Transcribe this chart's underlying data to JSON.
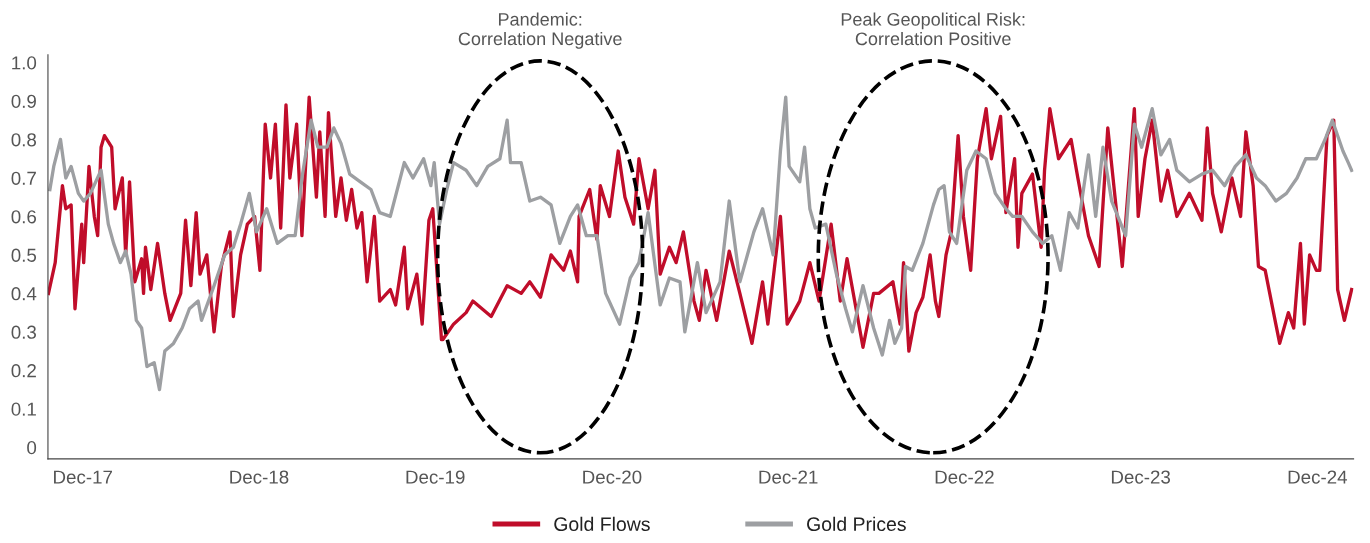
{
  "chart_data": {
    "type": "line",
    "x": [
      "2017-09-21",
      "2017-10-05",
      "2017-10-20",
      "2017-10-27",
      "2017-11-07",
      "2017-11-15",
      "2017-11-29",
      "2017-12-03",
      "2017-12-14",
      "2017-12-25",
      "2018-01-01",
      "2018-01-08",
      "2018-01-15",
      "2018-01-30",
      "2018-02-06",
      "2018-02-21",
      "2018-02-28",
      "2018-03-08",
      "2018-03-19",
      "2018-04-02",
      "2018-04-06",
      "2018-04-10",
      "2018-04-21",
      "2018-05-05",
      "2018-05-20",
      "2018-05-31",
      "2018-06-22",
      "2018-07-02",
      "2018-07-13",
      "2018-07-24",
      "2018-08-01",
      "2018-08-15",
      "2018-08-30",
      "2018-09-14",
      "2018-10-02",
      "2018-10-09",
      "2018-10-24",
      "2018-11-07",
      "2018-11-22",
      "2018-12-03",
      "2018-12-14",
      "2018-12-25",
      "2019-01-04",
      "2019-01-15",
      "2019-01-26",
      "2019-02-03",
      "2019-02-17",
      "2019-02-28",
      "2019-03-15",
      "2019-03-30",
      "2019-04-06",
      "2019-04-17",
      "2019-04-24",
      "2019-05-09",
      "2019-05-20",
      "2019-05-31",
      "2019-06-11",
      "2019-06-22",
      "2019-07-02",
      "2019-07-13",
      "2019-07-28",
      "2019-08-08",
      "2019-08-30",
      "2019-09-10",
      "2019-09-28",
      "2019-10-05",
      "2019-10-24",
      "2019-11-04",
      "2019-11-18",
      "2019-11-26",
      "2019-12-14",
      "2019-12-17",
      "2020-01-08",
      "2020-02-03",
      "2020-02-17",
      "2020-03-26",
      "2020-04-28",
      "2020-05-27",
      "2020-06-14",
      "2020-07-06",
      "2020-07-28",
      "2020-08-23",
      "2020-09-06",
      "2020-09-21",
      "2020-09-24",
      "2020-10-16",
      "2020-10-31",
      "2020-11-07",
      "2020-11-26",
      "2020-12-14",
      "2020-12-28",
      "2021-01-15",
      "2021-01-26",
      "2021-02-14",
      "2021-02-28",
      "2021-03-11",
      "2021-03-30",
      "2021-04-13",
      "2021-04-28",
      "2021-05-20",
      "2021-05-31",
      "2021-06-14",
      "2021-07-06",
      "2021-08-01",
      "2021-08-23",
      "2021-09-17",
      "2021-10-09",
      "2021-10-20",
      "2021-11-15",
      "2021-11-29",
      "2021-12-25",
      "2022-01-15",
      "2022-02-03",
      "2022-02-28",
      "2022-03-19",
      "2022-04-02",
      "2022-05-05",
      "2022-05-27",
      "2022-06-07",
      "2022-07-06",
      "2022-07-21",
      "2022-07-28",
      "2022-08-08",
      "2022-08-23",
      "2022-09-06",
      "2022-09-21",
      "2022-10-02",
      "2022-10-09",
      "2022-10-24",
      "2022-11-04",
      "2022-11-18",
      "2022-11-29",
      "2022-12-14",
      "2022-12-28",
      "2023-01-15",
      "2023-01-26",
      "2023-02-14",
      "2023-02-25",
      "2023-03-15",
      "2023-03-22",
      "2023-03-30",
      "2023-04-21",
      "2023-05-09",
      "2023-05-16",
      "2023-05-27",
      "2023-06-14",
      "2023-07-10",
      "2023-07-24",
      "2023-08-15",
      "2023-09-06",
      "2023-09-24",
      "2023-10-24",
      "2023-11-18",
      "2023-11-26",
      "2023-12-10",
      "2023-12-25",
      "2024-01-12",
      "2024-01-26",
      "2024-02-14",
      "2024-03-11",
      "2024-04-06",
      "2024-04-17",
      "2024-04-28",
      "2024-05-16",
      "2024-06-07",
      "2024-06-25",
      "2024-07-06",
      "2024-07-21",
      "2024-08-01",
      "2024-08-15",
      "2024-09-06",
      "2024-09-14",
      "2024-10-02",
      "2024-10-13",
      "2024-10-27",
      "2024-11-04",
      "2024-11-15",
      "2024-11-29",
      "2024-12-06",
      "2024-12-21",
      "2025-01-04",
      "2025-01-12",
      "2025-01-26",
      "2025-02-10"
    ],
    "series": [
      {
        "name": "Gold Flows",
        "color": "#c00d2a",
        "values": [
          0.4,
          0.48,
          0.68,
          0.62,
          0.63,
          0.36,
          0.58,
          0.48,
          0.73,
          0.6,
          0.55,
          0.78,
          0.81,
          0.78,
          0.62,
          0.7,
          0.5,
          0.69,
          0.43,
          0.49,
          0.4,
          0.52,
          0.41,
          0.53,
          0.4,
          0.33,
          0.4,
          0.59,
          0.42,
          0.61,
          0.45,
          0.5,
          0.3,
          0.47,
          0.56,
          0.34,
          0.5,
          0.58,
          0.6,
          0.46,
          0.84,
          0.7,
          0.84,
          0.57,
          0.89,
          0.7,
          0.84,
          0.55,
          0.91,
          0.65,
          0.82,
          0.6,
          0.87,
          0.6,
          0.7,
          0.59,
          0.67,
          0.57,
          0.61,
          0.43,
          0.6,
          0.38,
          0.41,
          0.37,
          0.52,
          0.36,
          0.45,
          0.32,
          0.59,
          0.62,
          0.28,
          0.28,
          0.32,
          0.35,
          0.38,
          0.34,
          0.42,
          0.4,
          0.43,
          0.39,
          0.5,
          0.46,
          0.51,
          0.43,
          0.6,
          0.67,
          0.54,
          0.68,
          0.6,
          0.77,
          0.65,
          0.58,
          0.75,
          0.62,
          0.72,
          0.45,
          0.52,
          0.48,
          0.56,
          0.38,
          0.33,
          0.46,
          0.33,
          0.51,
          0.4,
          0.27,
          0.43,
          0.32,
          0.6,
          0.32,
          0.38,
          0.48,
          0.38,
          0.58,
          0.38,
          0.49,
          0.26,
          0.4,
          0.4,
          0.43,
          0.32,
          0.48,
          0.25,
          0.35,
          0.39,
          0.5,
          0.38,
          0.34,
          0.5,
          0.56,
          0.81,
          0.6,
          0.46,
          0.75,
          0.88,
          0.75,
          0.86,
          0.61,
          0.75,
          0.52,
          0.66,
          0.71,
          0.52,
          0.72,
          0.88,
          0.75,
          0.8,
          0.7,
          0.55,
          0.47,
          0.83,
          0.47,
          0.88,
          0.6,
          0.75,
          0.85,
          0.64,
          0.72,
          0.6,
          0.66,
          0.59,
          0.83,
          0.66,
          0.56,
          0.7,
          0.6,
          0.82,
          0.68,
          0.47,
          0.46,
          0.32,
          0.27,
          0.35,
          0.31,
          0.53,
          0.32,
          0.5,
          0.46,
          0.46,
          0.81,
          0.85,
          0.41,
          0.33,
          0.41
        ]
      },
      {
        "name": "Gold Prices",
        "color": "#9d9fa2",
        "x": [
          "2017-09-24",
          "2017-10-02",
          "2017-10-16",
          "2017-10-27",
          "2017-11-07",
          "2017-11-22",
          "2017-12-03",
          "2017-12-17",
          "2018-01-08",
          "2018-01-23",
          "2018-02-03",
          "2018-02-17",
          "2018-02-28",
          "2018-03-11",
          "2018-03-22",
          "2018-04-02",
          "2018-04-13",
          "2018-04-28",
          "2018-05-09",
          "2018-05-20",
          "2018-06-07",
          "2018-06-25",
          "2018-07-10",
          "2018-07-28",
          "2018-08-04",
          "2018-08-30",
          "2018-09-21",
          "2018-10-09",
          "2018-10-24",
          "2018-11-11",
          "2018-11-26",
          "2018-12-17",
          "2019-01-08",
          "2019-01-30",
          "2019-02-14",
          "2019-02-28",
          "2019-03-19",
          "2019-04-02",
          "2019-04-21",
          "2019-05-05",
          "2019-05-20",
          "2019-06-07",
          "2019-06-29",
          "2019-07-21",
          "2019-08-08",
          "2019-08-30",
          "2019-09-28",
          "2019-10-16",
          "2019-11-07",
          "2019-11-22",
          "2019-11-29",
          "2019-12-10",
          "2019-12-25",
          "2020-01-08",
          "2020-02-03",
          "2020-02-25",
          "2020-03-19",
          "2020-04-13",
          "2020-04-28",
          "2020-05-05",
          "2020-05-27",
          "2020-06-14",
          "2020-07-06",
          "2020-07-28",
          "2020-08-15",
          "2020-09-06",
          "2020-09-21",
          "2020-10-09",
          "2020-10-31",
          "2020-11-18",
          "2020-12-17",
          "2021-01-08",
          "2021-01-26",
          "2021-02-14",
          "2021-03-11",
          "2021-03-30",
          "2021-04-21",
          "2021-05-01",
          "2021-05-27",
          "2021-06-14",
          "2021-07-13",
          "2021-08-01",
          "2021-08-23",
          "2021-09-21",
          "2021-10-09",
          "2021-10-31",
          "2021-11-15",
          "2021-11-26",
          "2021-12-03",
          "2021-12-25",
          "2022-01-04",
          "2022-01-15",
          "2022-01-26",
          "2022-02-17",
          "2022-03-11",
          "2022-03-30",
          "2022-04-13",
          "2022-05-05",
          "2022-05-27",
          "2022-06-14",
          "2022-06-29",
          "2022-07-10",
          "2022-07-24",
          "2022-08-01",
          "2022-08-15",
          "2022-09-06",
          "2022-09-28",
          "2022-10-09",
          "2022-10-20",
          "2022-10-31",
          "2022-11-15",
          "2022-12-06",
          "2022-12-25",
          "2023-01-15",
          "2023-02-03",
          "2023-02-25",
          "2023-03-11",
          "2023-03-30",
          "2023-04-21",
          "2023-05-12",
          "2023-05-31",
          "2023-06-18",
          "2023-07-06",
          "2023-07-24",
          "2023-08-15",
          "2023-08-30",
          "2023-09-14",
          "2023-10-02",
          "2023-10-31",
          "2023-11-18",
          "2023-12-03",
          "2023-12-25",
          "2024-01-12",
          "2024-01-30",
          "2024-02-14",
          "2024-03-11",
          "2024-04-06",
          "2024-04-28",
          "2024-05-23",
          "2024-06-14",
          "2024-07-06",
          "2024-07-28",
          "2024-08-15",
          "2024-09-06",
          "2024-09-28",
          "2024-10-20",
          "2024-11-07",
          "2024-11-29",
          "2024-12-17",
          "2025-01-01",
          "2025-01-23",
          "2025-02-03",
          "2025-02-10"
        ],
        "values": [
          0.67,
          0.73,
          0.8,
          0.7,
          0.73,
          0.66,
          0.64,
          0.66,
          0.72,
          0.58,
          0.53,
          0.48,
          0.51,
          0.45,
          0.33,
          0.31,
          0.21,
          0.22,
          0.15,
          0.25,
          0.27,
          0.31,
          0.36,
          0.38,
          0.33,
          0.42,
          0.5,
          0.52,
          0.58,
          0.66,
          0.56,
          0.62,
          0.53,
          0.55,
          0.55,
          0.7,
          0.85,
          0.78,
          0.78,
          0.83,
          0.79,
          0.71,
          0.69,
          0.67,
          0.61,
          0.6,
          0.74,
          0.7,
          0.75,
          0.68,
          0.74,
          0.58,
          0.67,
          0.74,
          0.72,
          0.68,
          0.73,
          0.75,
          0.85,
          0.74,
          0.74,
          0.64,
          0.65,
          0.63,
          0.53,
          0.6,
          0.63,
          0.55,
          0.55,
          0.4,
          0.32,
          0.44,
          0.48,
          0.61,
          0.37,
          0.44,
          0.43,
          0.3,
          0.48,
          0.35,
          0.43,
          0.64,
          0.43,
          0.56,
          0.62,
          0.5,
          0.77,
          0.91,
          0.73,
          0.69,
          0.78,
          0.62,
          0.57,
          0.58,
          0.45,
          0.36,
          0.3,
          0.42,
          0.31,
          0.24,
          0.33,
          0.27,
          0.31,
          0.47,
          0.46,
          0.53,
          0.63,
          0.67,
          0.68,
          0.56,
          0.53,
          0.72,
          0.77,
          0.75,
          0.66,
          0.62,
          0.6,
          0.6,
          0.56,
          0.53,
          0.55,
          0.46,
          0.61,
          0.57,
          0.76,
          0.6,
          0.78,
          0.64,
          0.55,
          0.84,
          0.78,
          0.88,
          0.76,
          0.8,
          0.72,
          0.69,
          0.71,
          0.72,
          0.68,
          0.73,
          0.76,
          0.7,
          0.68,
          0.64,
          0.66,
          0.7,
          0.75,
          0.75,
          0.8,
          0.85,
          0.77,
          0.74,
          0.72
        ]
      }
    ],
    "xlim": [
      "2017-09-20",
      "2025-02-14"
    ],
    "xticks": [
      {
        "value": "2017-12",
        "label": "Dec-17"
      },
      {
        "value": "2018-12",
        "label": "Dec-18"
      },
      {
        "value": "2019-12",
        "label": "Dec-19"
      },
      {
        "value": "2020-12",
        "label": "Dec-20"
      },
      {
        "value": "2021-12",
        "label": "Dec-21"
      },
      {
        "value": "2022-12",
        "label": "Dec-22"
      },
      {
        "value": "2023-12",
        "label": "Dec-23"
      },
      {
        "value": "2024-12",
        "label": "Dec-24"
      }
    ],
    "ylim": [
      -0.03,
      1.02
    ],
    "yticks": [
      0,
      {
        "value": 0.1,
        "label": "0.1"
      },
      {
        "value": 0.2,
        "label": "0.2"
      },
      {
        "value": 0.3,
        "label": "0.3"
      },
      {
        "value": 0.4,
        "label": "0.4"
      },
      {
        "value": 0.5,
        "label": "0.5"
      },
      {
        "value": 0.6,
        "label": "0.6"
      },
      {
        "value": 0.7,
        "label": "0.7"
      },
      {
        "value": 0.8,
        "label": "0.8"
      },
      {
        "value": 0.9,
        "label": "0.9"
      },
      {
        "value": 1.0,
        "label": "1.0"
      }
    ],
    "annotations": [
      "Pandemic:\nCorrelation Negative",
      "Peak Geopolitical Risk:\nCorrelation Positive"
    ],
    "grid": false,
    "legend": "bottom",
    "marker": "none",
    "line_style": "solid"
  }
}
